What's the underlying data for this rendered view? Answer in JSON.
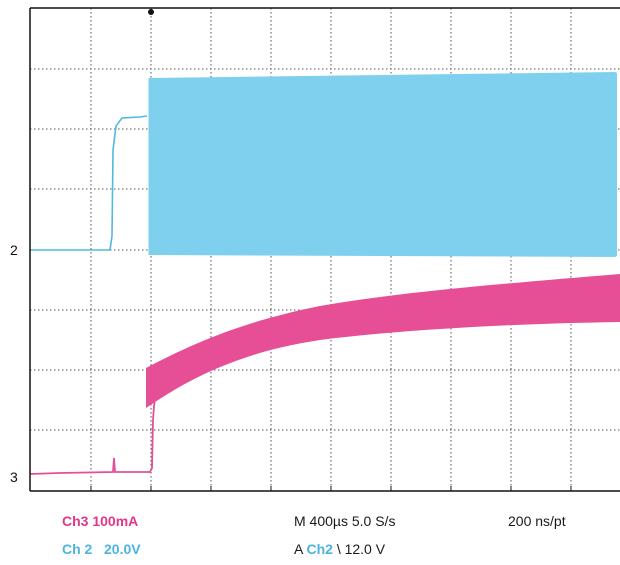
{
  "scope": {
    "channel_markers": {
      "ch2": "2",
      "ch3": "3"
    },
    "colors": {
      "ch2": "#7fd0ee",
      "ch2_trace": "#52b8e0",
      "ch3": "#e64e96",
      "grid": "#555555",
      "frame": "#111111"
    }
  },
  "readout": {
    "ch3_label": "Ch3 100mA",
    "ch2_label": "Ch 2   20.0V",
    "timebase": "M 400µs 5.0 S/s",
    "trigger_prefix": "A",
    "trigger_channel": "Ch2",
    "trigger_suffix": "\\ 12.0 V",
    "resolution": "200 ns/pt"
  },
  "chart_data": {
    "type": "line",
    "series": [
      {
        "name": "Ch2",
        "values": []
      },
      {
        "name": "Ch3",
        "values": []
      }
    ]
  }
}
